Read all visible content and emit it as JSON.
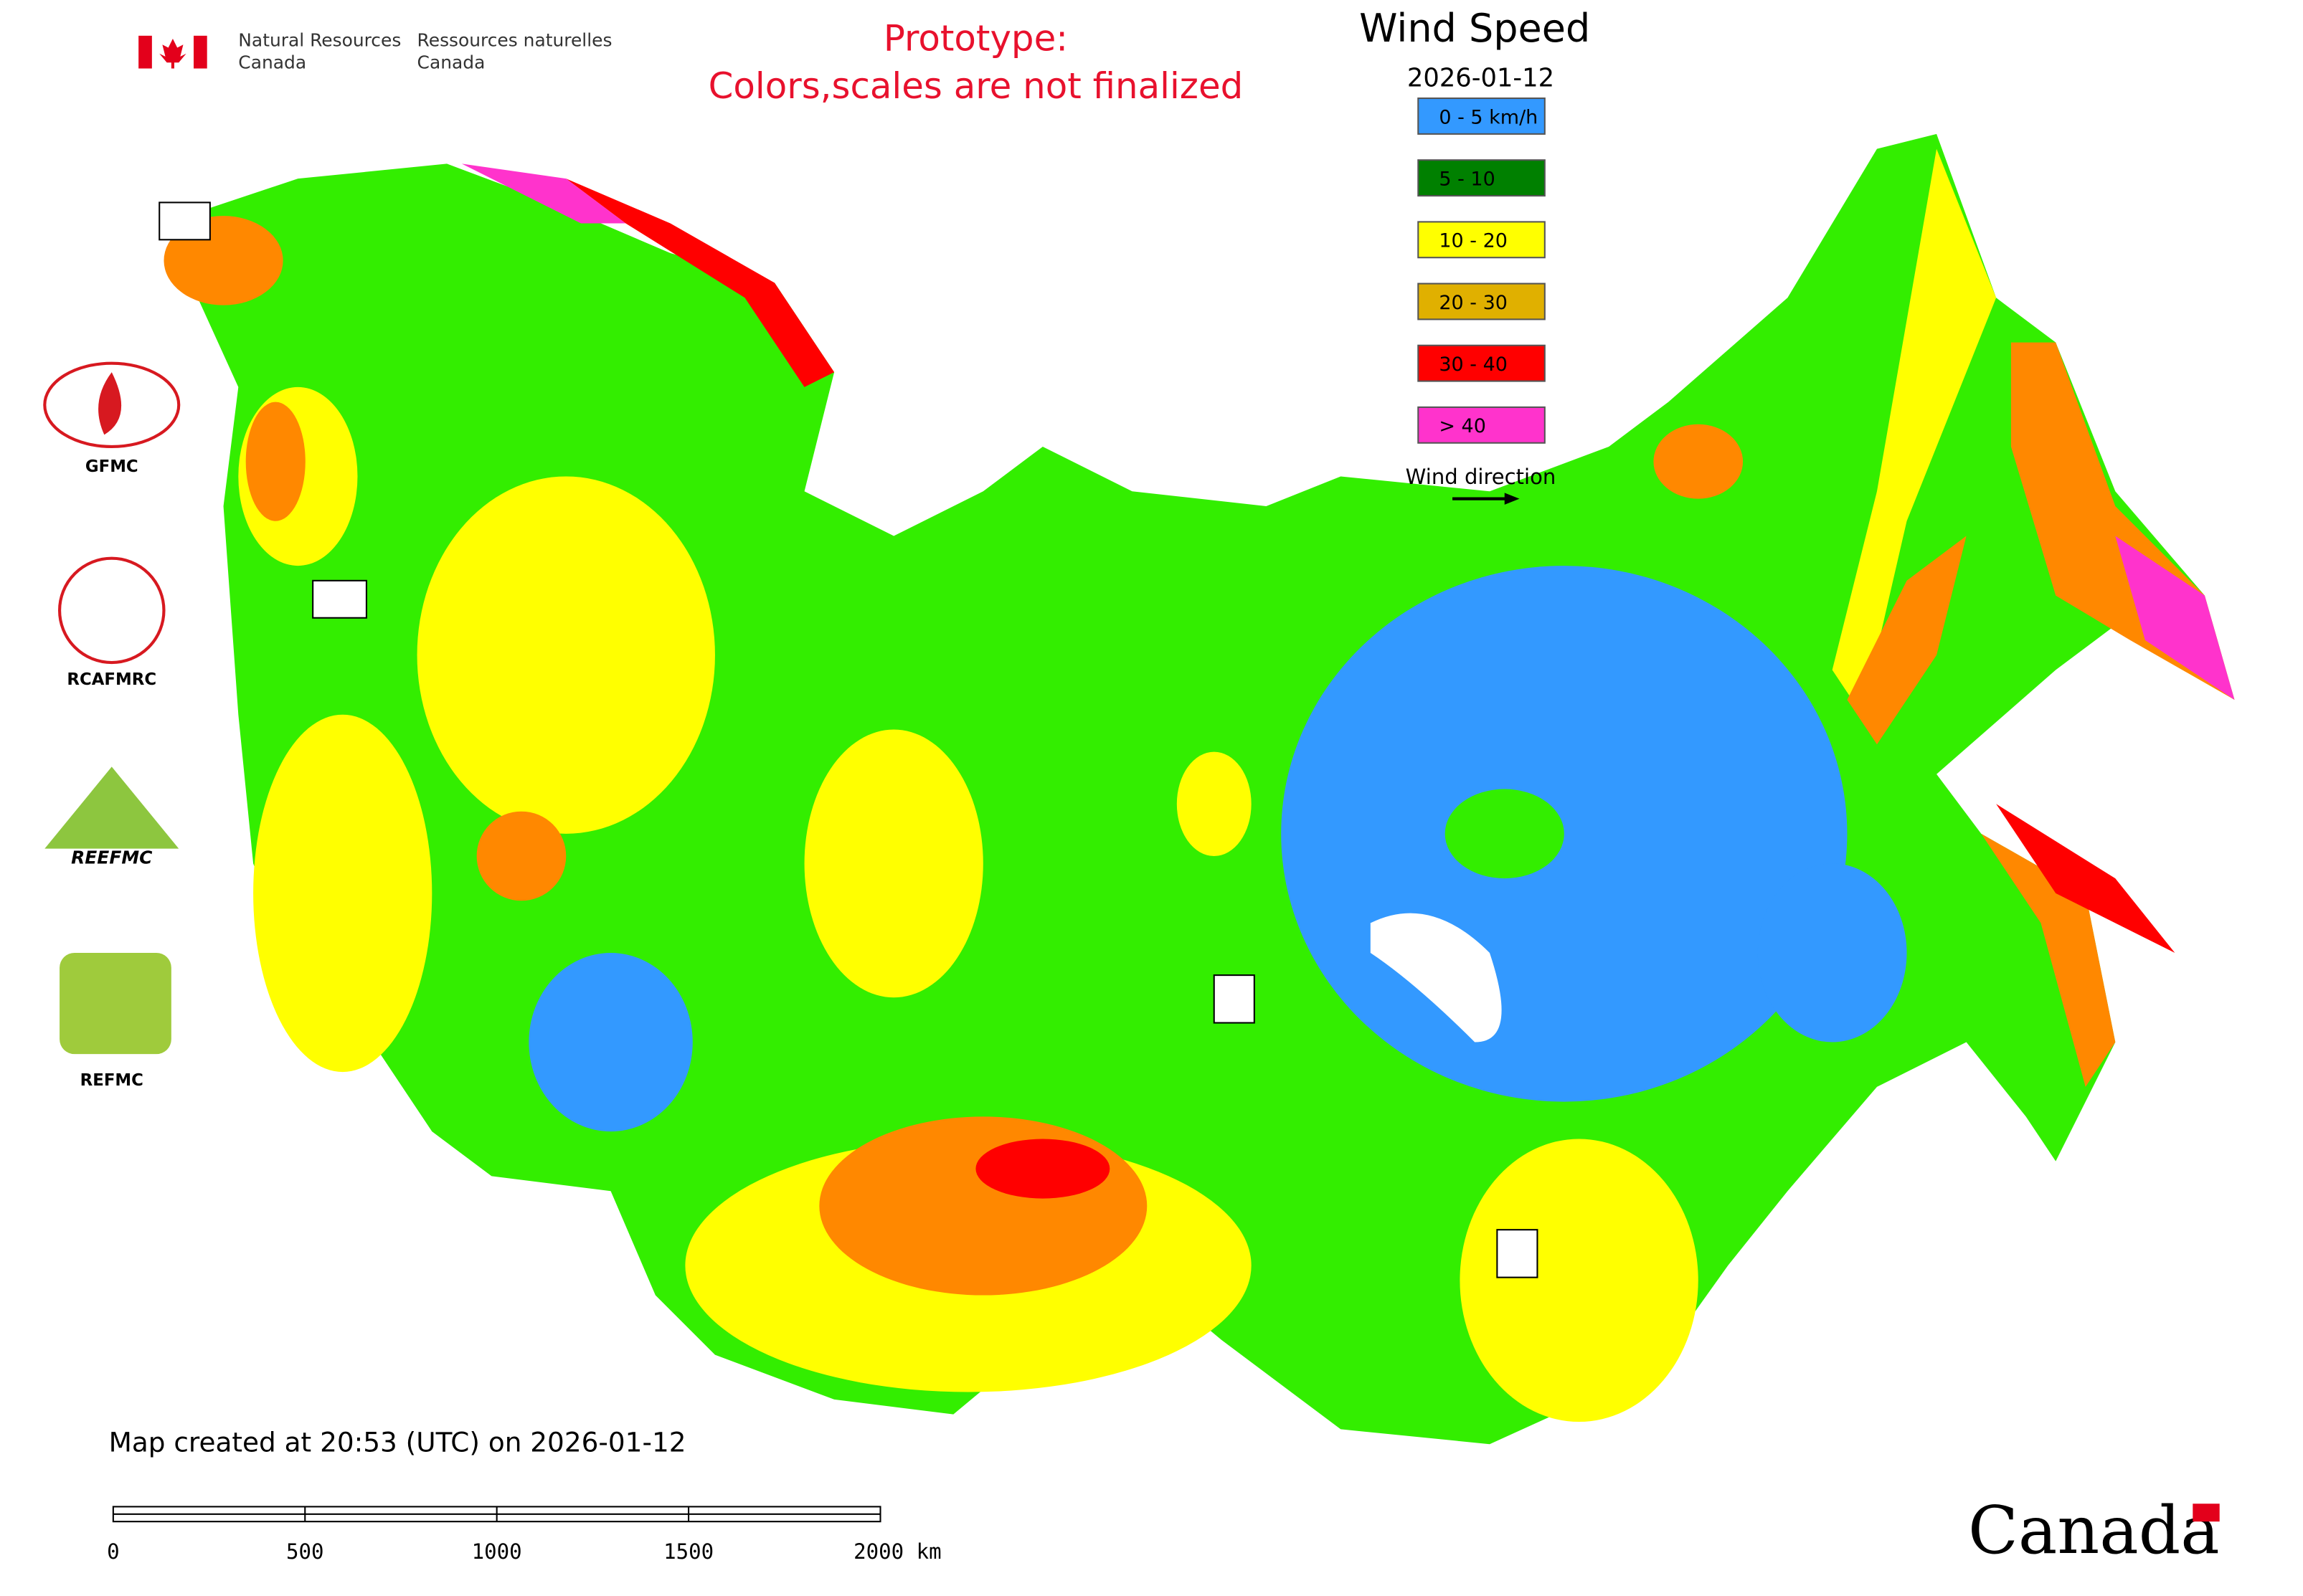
{
  "header": {
    "department_en": [
      "Natural Resources",
      "Canada"
    ],
    "department_fr": [
      "Ressources naturelles",
      "Canada"
    ]
  },
  "notice": [
    "Prototype:",
    "Colors,scales are not finalized"
  ],
  "legend": {
    "title": "Wind Speed",
    "date": "2026-01-12",
    "items": [
      {
        "label": "0 - 5 km/h",
        "color": "#3399ff"
      },
      {
        "label": "5 - 10",
        "color": "#008000"
      },
      {
        "label": "10 - 20",
        "color": "#ffff00"
      },
      {
        "label": "20 - 30",
        "color": "#e0b000"
      },
      {
        "label": "30 - 40",
        "color": "#ff0000"
      },
      {
        "label": "> 40",
        "color": "#ff33cc"
      }
    ],
    "direction_label": "Wind direction"
  },
  "logos": [
    "GFMC",
    "RCAFMRC",
    "REEFMC",
    "REFMC"
  ],
  "footer": {
    "created": "Map created at 20:53 (UTC) on 2026-01-12",
    "scale_labels": [
      "0",
      "500",
      "1000",
      "1500",
      "2000 km"
    ],
    "wordmark": "Canada"
  }
}
